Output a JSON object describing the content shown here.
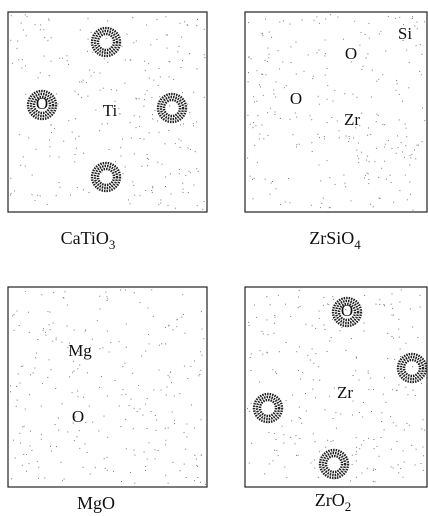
{
  "panels": [
    {
      "caption": {
        "base": "CaTiO",
        "sub": "3"
      },
      "labels": [
        "O",
        "Ti"
      ]
    },
    {
      "caption": {
        "base": "ZrSiO",
        "sub": "4"
      },
      "labels": [
        "Si",
        "O",
        "O",
        "Zr"
      ]
    },
    {
      "caption": {
        "base": "MgO"
      },
      "labels": [
        "Mg",
        "O"
      ]
    },
    {
      "caption": {
        "base": "ZrO",
        "sub": "2"
      },
      "labels": [
        "O",
        "Zr"
      ]
    }
  ]
}
